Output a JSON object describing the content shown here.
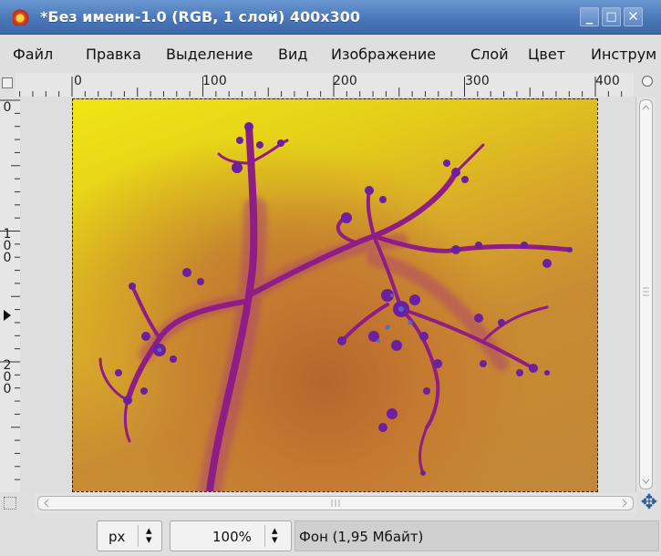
{
  "window": {
    "title": "*Без имени-1.0 (RGB, 1 слой) 400x300",
    "buttons": {
      "minimize": "_",
      "maximize": "□",
      "close": "✕"
    }
  },
  "menu": [
    "Файл",
    "Правка",
    "Выделение",
    "Вид",
    "Изображение",
    "Слой",
    "Цвет",
    "Инструм"
  ],
  "ruler": {
    "horizontal_labels": [
      "0",
      "100",
      "200",
      "300",
      "400"
    ],
    "vertical_labels": [
      "0",
      "100",
      "200"
    ]
  },
  "status": {
    "unit": "px",
    "zoom": "100%",
    "message": "Фон (1,95 Мбайт)"
  },
  "icons": {
    "app": "gimp-icon",
    "navigate": "navigate-icon",
    "zoom": "zoom-icon",
    "quickmask": "quickmask-icon"
  },
  "colors": {
    "titlebar": "#4a77b8",
    "image_yellow": "#efe614",
    "image_ochre": "#c28838",
    "fractal": "#8e1d86"
  }
}
